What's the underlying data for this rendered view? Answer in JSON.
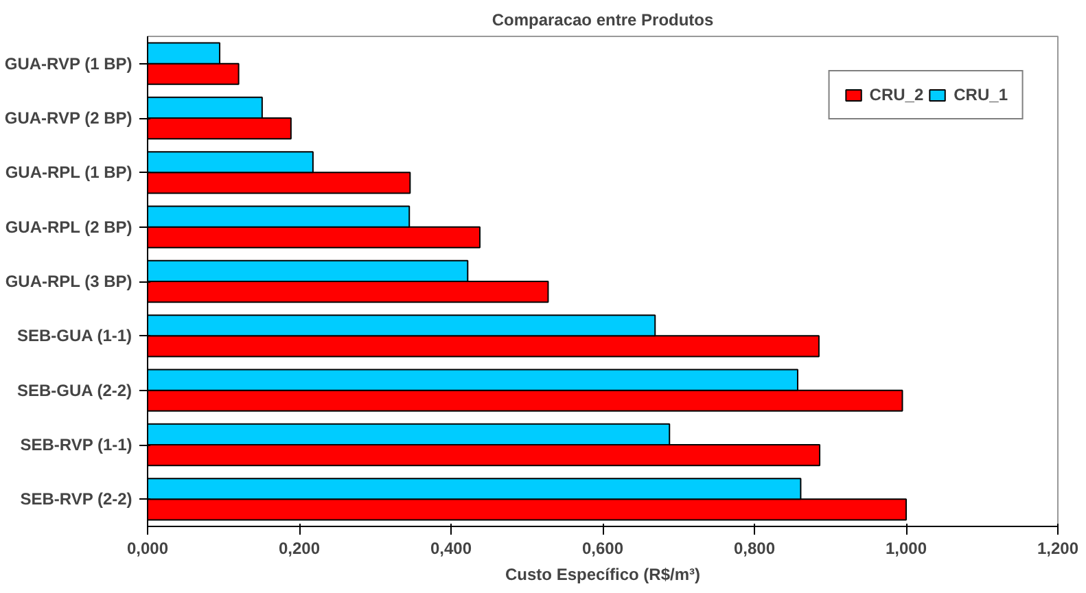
{
  "chart_data": {
    "type": "bar",
    "orientation": "horizontal",
    "title": "Comparacao entre Produtos",
    "xlabel": "Custo Específico (R$/m³)",
    "categories": [
      "GUA-RVP (1 BP)",
      "GUA-RVP (2 BP)",
      "GUA-RPL (1 BP)",
      "GUA-RPL (2 BP)",
      "GUA-RPL (3 BP)",
      "SEB-GUA (1-1)",
      "SEB-GUA (2-2)",
      "SEB-RVP (1-1)",
      "SEB-RVP (2-2)"
    ],
    "series": [
      {
        "name": "CRU_2",
        "color": "#ff0000",
        "values": [
          0.12,
          0.189,
          0.346,
          0.438,
          0.528,
          0.885,
          0.995,
          0.886,
          1.0
        ]
      },
      {
        "name": "CRU_1",
        "color": "#00ccff",
        "values": [
          0.095,
          0.151,
          0.218,
          0.345,
          0.422,
          0.669,
          0.857,
          0.688,
          0.861
        ]
      }
    ],
    "xlim": [
      0,
      1.2
    ],
    "xticks": [
      {
        "value": 0,
        "label": "0,000"
      },
      {
        "value": 0.2,
        "label": "0,200"
      },
      {
        "value": 0.4,
        "label": "0,400"
      },
      {
        "value": 0.6,
        "label": "0,600"
      },
      {
        "value": 0.8,
        "label": "0,800"
      },
      {
        "value": 1.0,
        "label": "1,000"
      },
      {
        "value": 1.2,
        "label": "1,200"
      }
    ],
    "grid": false,
    "legend": "top right"
  }
}
